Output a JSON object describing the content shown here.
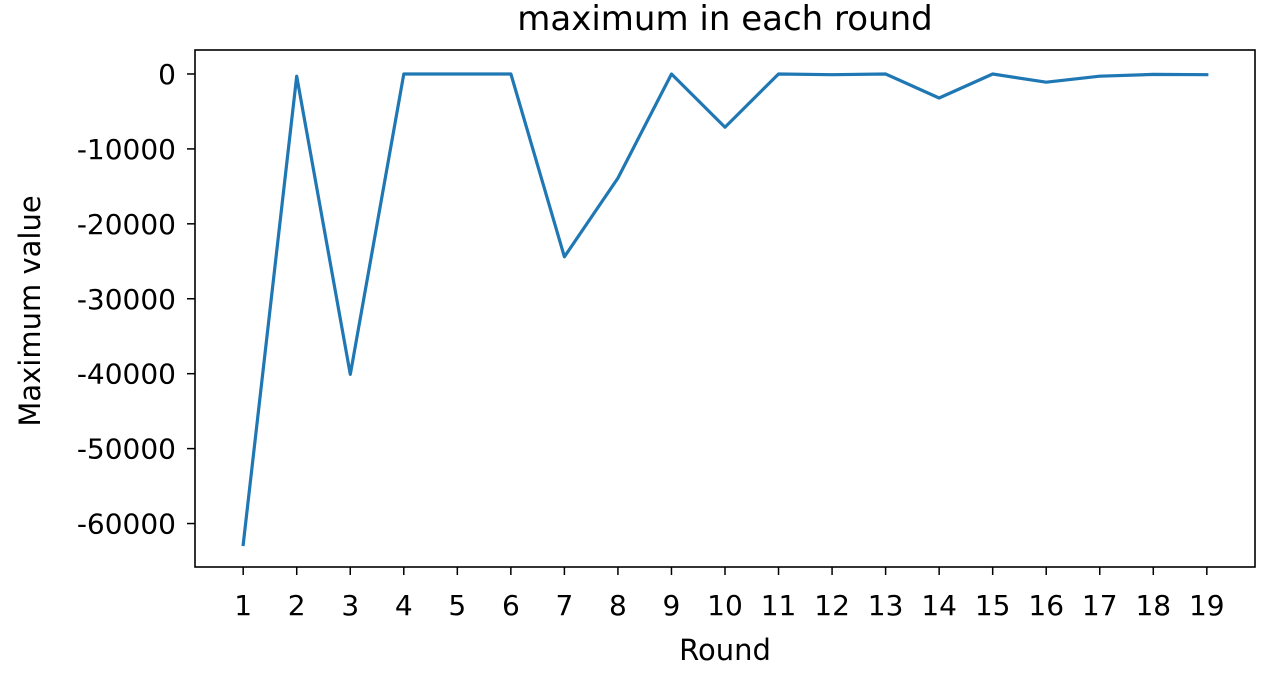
{
  "chart_data": {
    "type": "line",
    "title": "maximum in each round",
    "xlabel": "Round",
    "ylabel": "Maximum value",
    "x": [
      1,
      2,
      3,
      4,
      5,
      6,
      7,
      8,
      9,
      10,
      11,
      12,
      13,
      14,
      15,
      16,
      17,
      18,
      19
    ],
    "series": [
      {
        "color": "#1f77b4",
        "values": [
          -62800,
          -300,
          -40100,
          0,
          0,
          0,
          -24400,
          -13900,
          0,
          -7100,
          0,
          -100,
          0,
          -3200,
          0,
          -1100,
          -300,
          -50,
          -100
        ]
      }
    ],
    "xticks": [
      "1",
      "2",
      "3",
      "4",
      "5",
      "6",
      "7",
      "8",
      "9",
      "10",
      "11",
      "12",
      "13",
      "14",
      "15",
      "16",
      "17",
      "18",
      "19"
    ],
    "yticks": [
      0,
      -10000,
      -20000,
      -30000,
      -40000,
      -50000,
      -60000
    ],
    "xlim": [
      0.1,
      19.9
    ],
    "ylim": [
      -65800,
      3200
    ],
    "grid": false,
    "legend": "none"
  }
}
